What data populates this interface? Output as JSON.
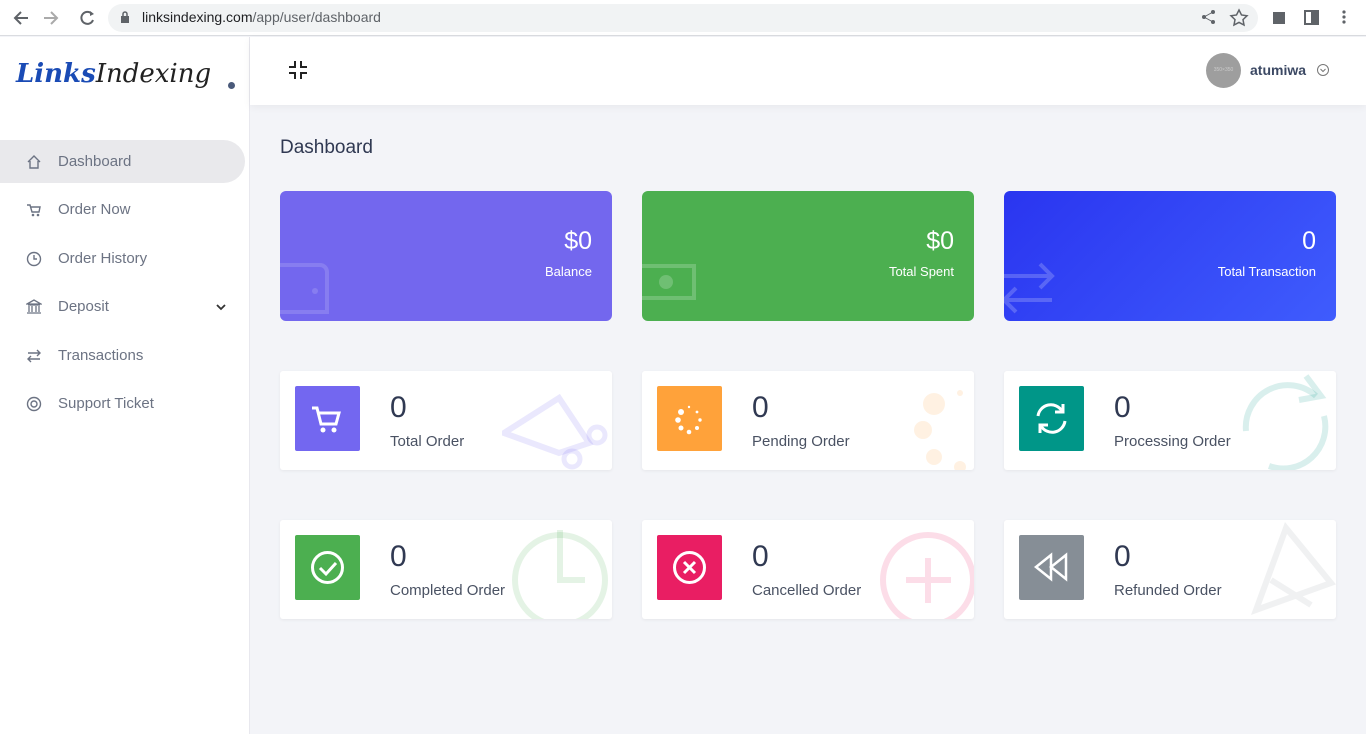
{
  "browser": {
    "url_domain": "linksindexing.com",
    "url_path": "/app/user/dashboard"
  },
  "logo": {
    "text_1": "Links",
    "text_2": "Indexing"
  },
  "header": {
    "avatar_label": "350×350",
    "username": "atumiwa"
  },
  "sidebar": {
    "items": [
      "Dashboard",
      "Order Now",
      "Order History",
      "Deposit",
      "Transactions",
      "Support Ticket"
    ]
  },
  "main": {
    "title": "Dashboard",
    "summary_cards": [
      {
        "value": "$0",
        "label": "Balance"
      },
      {
        "value": "$0",
        "label": "Total Spent"
      },
      {
        "value": 0,
        "label": "Total Transaction"
      }
    ],
    "stat_cards": [
      {
        "value": 0,
        "label": "Total Order"
      },
      {
        "value": 0,
        "label": "Pending Order"
      },
      {
        "value": 0,
        "label": "Processing Order"
      },
      {
        "value": 0,
        "label": "Completed Order"
      },
      {
        "value": 0,
        "label": "Cancelled Order"
      },
      {
        "value": 0,
        "label": "Refunded Order"
      }
    ]
  }
}
